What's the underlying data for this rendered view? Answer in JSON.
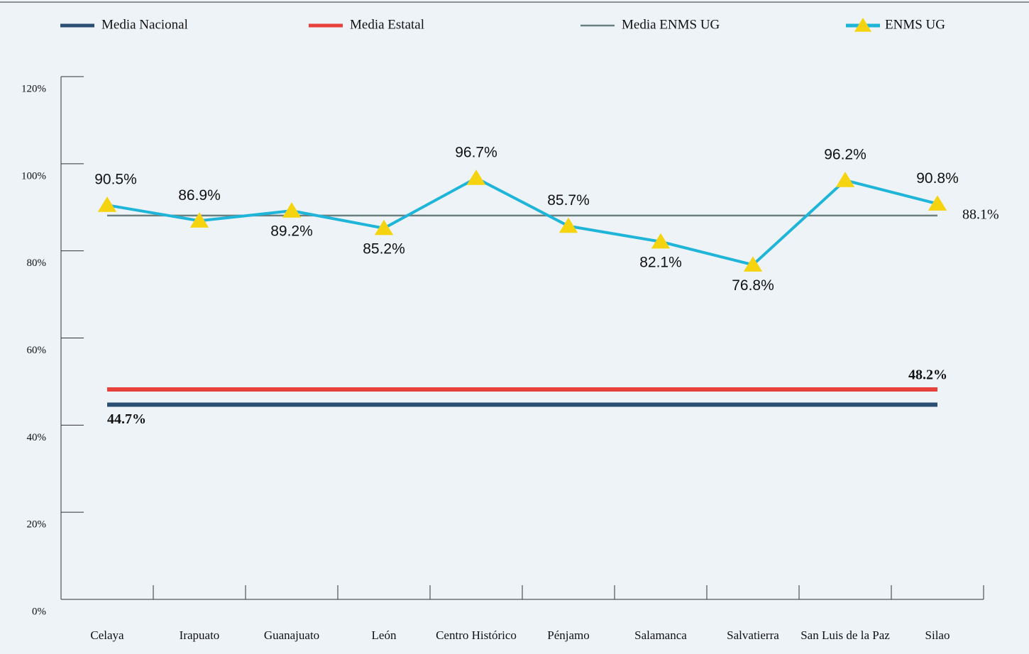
{
  "chart_data": {
    "type": "line",
    "categories": [
      "Celaya",
      "Irapuato",
      "Guanajuato",
      "León",
      "Centro Histórico",
      "Pénjamo",
      "Salamanca",
      "Salvatierra",
      "San Luis de la Paz",
      "Silao"
    ],
    "series": [
      {
        "name": "ENMS UG",
        "color": "#1fb5d9",
        "marker_color": "#f5d40f",
        "values": [
          90.5,
          86.9,
          89.2,
          85.2,
          96.7,
          85.7,
          82.1,
          76.8,
          96.2,
          90.8
        ],
        "value_labels": [
          "90.5%",
          "86.9%",
          "89.2%",
          "85.2%",
          "96.7%",
          "85.7%",
          "82.1%",
          "76.8%",
          "96.2%",
          "90.8%"
        ]
      }
    ],
    "reference_lines": [
      {
        "name": "Media Nacional",
        "color": "#2a4f72",
        "value": 44.7,
        "value_label": "44.7%"
      },
      {
        "name": "Media Estatal",
        "color": "#e8413c",
        "value": 48.2,
        "value_label": "48.2%"
      },
      {
        "name": "Media ENMS UG",
        "color": "#6b7f7e",
        "value": 88.1,
        "value_label": "88.1%"
      }
    ],
    "ylim": [
      0,
      120
    ],
    "yticks": [
      {
        "value": 0,
        "label": "0%"
      },
      {
        "value": 20,
        "label": "20%"
      },
      {
        "value": 40,
        "label": "40%"
      },
      {
        "value": 60,
        "label": "60%"
      },
      {
        "value": 80,
        "label": "80%"
      },
      {
        "value": 100,
        "label": "100%"
      },
      {
        "value": 120,
        "label": "120%"
      }
    ]
  }
}
